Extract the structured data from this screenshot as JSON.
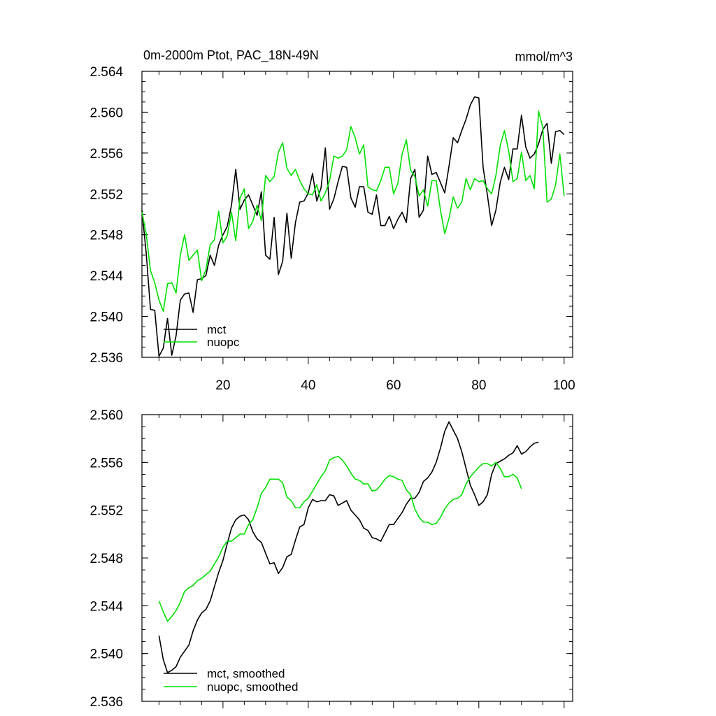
{
  "chart_data": [
    {
      "type": "line",
      "title": "0m-2000m Ptot, PAC_18N-49N",
      "units": "mmol/m^3",
      "xlim": [
        1,
        102
      ],
      "ylim": [
        2.536,
        2.564
      ],
      "xticks": [
        20,
        40,
        60,
        80,
        100
      ],
      "xtick_labels": [
        "20",
        "40",
        "60",
        "80",
        "100"
      ],
      "yticks": [
        2.536,
        2.54,
        2.544,
        2.548,
        2.552,
        2.556,
        2.56,
        2.564
      ],
      "ytick_labels": [
        "2.536",
        "2.540",
        "2.544",
        "2.548",
        "2.552",
        "2.556",
        "2.560",
        "2.564"
      ],
      "legend_position": "bottom-left",
      "series": [
        {
          "name": "mct",
          "color": "#000000",
          "x_start": 1,
          "values": [
            2.5504,
            2.5462,
            2.5407,
            2.5406,
            2.5361,
            2.5369,
            2.5398,
            2.5362,
            2.5381,
            2.5416,
            2.5422,
            2.5423,
            2.5404,
            2.5436,
            2.5437,
            2.544,
            2.546,
            2.545,
            2.547,
            2.548,
            2.5488,
            2.5509,
            2.5544,
            2.5505,
            2.5514,
            2.5519,
            2.5509,
            2.5499,
            2.5522,
            2.546,
            2.5456,
            2.5497,
            2.5441,
            2.5454,
            2.5501,
            2.5457,
            2.5492,
            2.5512,
            2.5513,
            2.5521,
            2.554,
            2.5513,
            2.5526,
            2.5565,
            2.5505,
            2.5515,
            2.5532,
            2.5547,
            2.5546,
            2.5516,
            2.5507,
            2.5527,
            2.5527,
            2.5502,
            2.55,
            2.5519,
            2.5489,
            2.5489,
            2.5498,
            2.5486,
            2.5495,
            2.5502,
            2.5492,
            2.5535,
            2.5544,
            2.5497,
            2.5504,
            2.5557,
            2.5539,
            2.5541,
            2.5531,
            2.5521,
            2.5547,
            2.5575,
            2.557,
            2.5582,
            2.5593,
            2.5607,
            2.5615,
            2.5614,
            2.5546,
            2.5519,
            2.5489,
            2.5504,
            2.5531,
            2.5546,
            2.5534,
            2.5564,
            2.5564,
            2.5597,
            2.5566,
            2.5555,
            2.5559,
            2.5569,
            2.5583,
            2.5589,
            2.555,
            2.5581,
            2.5582,
            2.5578
          ]
        },
        {
          "name": "nuopc",
          "color": "#00e000",
          "x_start": 1,
          "values": [
            2.5502,
            2.5481,
            2.5445,
            2.5433,
            2.5416,
            2.5405,
            2.5432,
            2.5433,
            2.5423,
            2.546,
            2.548,
            2.5455,
            2.546,
            2.5465,
            2.5435,
            2.5446,
            2.547,
            2.5475,
            2.5503,
            2.5472,
            2.5479,
            2.5502,
            2.5474,
            2.5516,
            2.5525,
            2.5486,
            2.5493,
            2.5509,
            2.5494,
            2.5538,
            2.5532,
            2.5537,
            2.5561,
            2.557,
            2.5545,
            2.5538,
            2.5544,
            2.5533,
            2.5525,
            2.552,
            2.5519,
            2.5529,
            2.5513,
            2.5521,
            2.5533,
            2.5557,
            2.5555,
            2.5557,
            2.5563,
            2.5586,
            2.5575,
            2.5559,
            2.5568,
            2.5527,
            2.5524,
            2.5523,
            2.5533,
            2.5546,
            2.5546,
            2.552,
            2.553,
            2.5559,
            2.5573,
            2.5543,
            2.5537,
            2.5518,
            2.5524,
            2.5508,
            2.5533,
            2.5533,
            2.5504,
            2.5481,
            2.5496,
            2.5517,
            2.5506,
            2.5512,
            2.5535,
            2.5524,
            2.5535,
            2.5532,
            2.5533,
            2.5525,
            2.552,
            2.5538,
            2.5567,
            2.5582,
            2.5562,
            2.5532,
            2.5535,
            2.5561,
            2.5533,
            2.5538,
            2.5525,
            2.5601,
            2.5585,
            2.5512,
            2.5515,
            2.5529,
            2.5559,
            2.5518
          ]
        }
      ]
    },
    {
      "type": "line",
      "title": "",
      "xlim": [
        1,
        102
      ],
      "ylim": [
        2.536,
        2.56
      ],
      "xticks": [
        20,
        40,
        60,
        80,
        100
      ],
      "yticks": [
        2.536,
        2.54,
        2.544,
        2.548,
        2.552,
        2.556,
        2.56
      ],
      "ytick_labels": [
        "2.536",
        "2.540",
        "2.544",
        "2.548",
        "2.552",
        "2.556",
        "2.560"
      ],
      "legend_position": "bottom-left",
      "series": [
        {
          "name": "mct, smoothed",
          "color": "#000000",
          "x_start": 5,
          "values": [
            2.5415,
            2.5395,
            2.5384,
            2.5386,
            2.5389,
            2.5397,
            2.5402,
            2.5407,
            2.5419,
            2.5428,
            2.5434,
            2.5437,
            2.5444,
            2.5456,
            2.5468,
            2.5478,
            2.5492,
            2.5505,
            2.5512,
            2.5515,
            2.5516,
            2.5512,
            2.5502,
            2.5496,
            2.5493,
            2.5484,
            2.5475,
            2.5476,
            2.5467,
            2.5472,
            2.5481,
            2.5483,
            2.5495,
            2.5506,
            2.5508,
            2.5522,
            2.5529,
            2.5527,
            2.5528,
            2.5528,
            2.5533,
            2.5532,
            2.5524,
            2.5526,
            2.5528,
            2.552,
            2.5516,
            2.5512,
            2.5505,
            2.5503,
            2.5497,
            2.5496,
            2.5494,
            2.5501,
            2.5508,
            2.5508,
            2.5513,
            2.5518,
            2.5525,
            2.553,
            2.553,
            2.5535,
            2.5544,
            2.5547,
            2.5552,
            2.556,
            2.5572,
            2.5586,
            2.5594,
            2.5587,
            2.558,
            2.5569,
            2.5555,
            2.5541,
            2.5533,
            2.5524,
            2.5527,
            2.5533,
            2.555,
            2.5559,
            2.5561,
            2.5563,
            2.5566,
            2.5568,
            2.5574,
            2.5567,
            2.5569,
            2.5573,
            2.5576,
            2.5577
          ]
        },
        {
          "name": "nuopc, smoothed",
          "color": "#00e000",
          "x_start": 5,
          "values": [
            2.5444,
            2.5435,
            2.5427,
            2.5431,
            2.5436,
            2.5443,
            2.5452,
            2.5455,
            2.5457,
            2.5461,
            2.5463,
            2.5466,
            2.5469,
            2.5475,
            2.5481,
            2.5489,
            2.5494,
            2.5494,
            2.5497,
            2.55,
            2.55,
            2.5508,
            2.5512,
            2.5522,
            2.5534,
            2.5539,
            2.5546,
            2.5546,
            2.5546,
            2.5543,
            2.5531,
            2.5528,
            2.5522,
            2.5522,
            2.5527,
            2.553,
            2.5536,
            2.5542,
            2.5548,
            2.5553,
            2.5562,
            2.5564,
            2.5565,
            2.5562,
            2.5557,
            2.5551,
            2.5546,
            2.5545,
            2.5542,
            2.5542,
            2.5536,
            2.5537,
            2.5541,
            2.5546,
            2.5549,
            2.5548,
            2.5546,
            2.5545,
            2.5537,
            2.5533,
            2.5521,
            2.5514,
            2.551,
            2.551,
            2.5508,
            2.5509,
            2.5514,
            2.5521,
            2.5526,
            2.5529,
            2.553,
            2.5533,
            2.5542,
            2.5548,
            2.5552,
            2.5556,
            2.5559,
            2.5559,
            2.5557,
            2.556,
            2.5555,
            2.5548,
            2.5548,
            2.555,
            2.5547,
            2.5538
          ]
        }
      ]
    }
  ]
}
